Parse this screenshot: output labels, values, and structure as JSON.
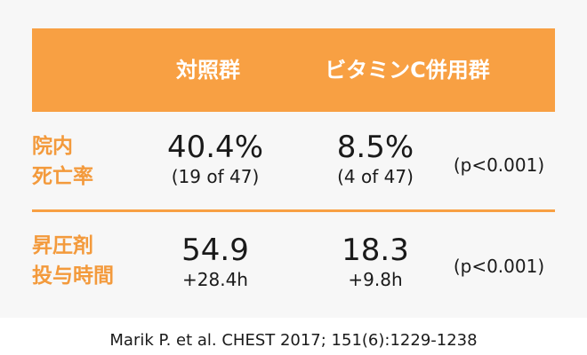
{
  "table": {
    "header": {
      "col_control": "対照群",
      "col_treatment": "ビタミンC併用群"
    },
    "rows": [
      {
        "label_line1": "院内",
        "label_line2": "死亡率",
        "control_main": "40.4%",
        "control_sub": "(19 of 47)",
        "treatment_main": "8.5%",
        "treatment_sub": "(4 of 47)",
        "p_value": "(p<0.001)"
      },
      {
        "label_line1": "昇圧剤",
        "label_line2": "投与時間",
        "control_main": "54.9",
        "control_sub": "+28.4h",
        "treatment_main": "18.3",
        "treatment_sub": "+9.8h",
        "p_value": "(p<0.001)"
      }
    ]
  },
  "citation": "Marik P. et al. CHEST 2017; 151(6):1229-1238",
  "colors": {
    "accent": "#f8a043",
    "label": "#f39a3c",
    "panel_bg": "#f7f7f7"
  }
}
